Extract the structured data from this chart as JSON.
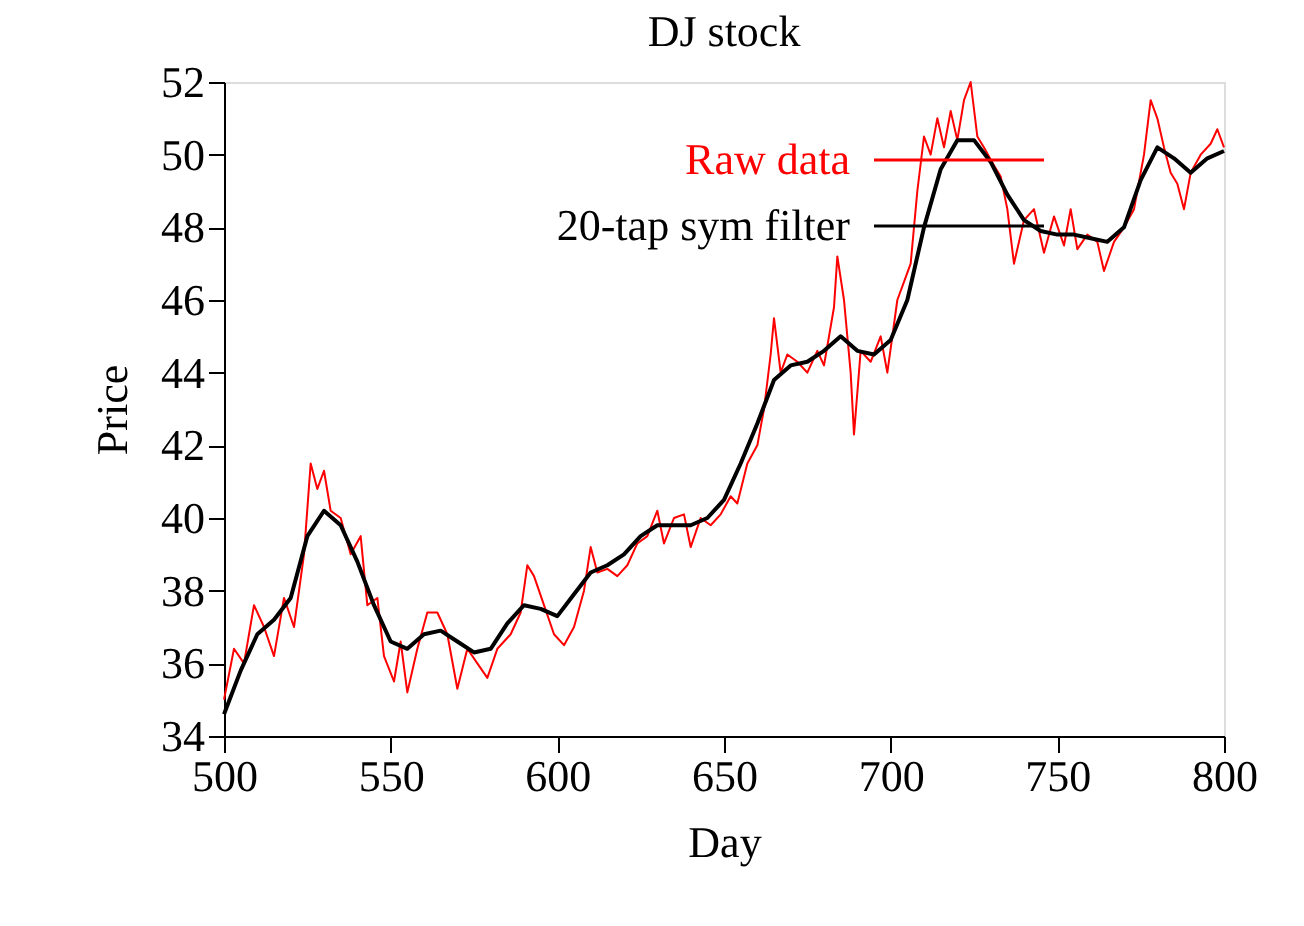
{
  "chart_data": {
    "type": "line",
    "title": "DJ stock",
    "xlabel": "Day",
    "ylabel": "Price",
    "xlim": [
      500,
      800
    ],
    "ylim": [
      34,
      52
    ],
    "xticks": [
      500,
      550,
      600,
      650,
      700,
      750,
      800
    ],
    "yticks": [
      34,
      36,
      38,
      40,
      42,
      44,
      46,
      48,
      50,
      52
    ],
    "grid": false,
    "legend": "top right",
    "marker": "none",
    "line_style": "solid",
    "series": [
      {
        "name": "Raw data",
        "color": "#ff0000",
        "x": [
          500,
          503,
          506,
          509,
          512,
          515,
          518,
          521,
          524,
          526,
          528,
          530,
          532,
          535,
          538,
          541,
          543,
          546,
          548,
          551,
          553,
          555,
          558,
          561,
          564,
          567,
          570,
          573,
          576,
          579,
          582,
          586,
          589,
          591,
          593,
          596,
          599,
          602,
          605,
          608,
          610,
          612,
          615,
          618,
          621,
          624,
          627,
          630,
          632,
          635,
          638,
          640,
          643,
          646,
          649,
          652,
          654,
          657,
          660,
          662,
          664,
          665,
          667,
          669,
          672,
          675,
          678,
          680,
          683,
          684,
          686,
          688,
          689,
          691,
          694,
          697,
          699,
          702,
          704,
          706,
          708,
          710,
          712,
          714,
          716,
          718,
          720,
          722,
          724,
          726,
          728,
          731,
          733,
          735,
          737,
          740,
          743,
          746,
          749,
          752,
          754,
          756,
          759,
          762,
          764,
          767,
          770,
          773,
          776,
          778,
          780,
          782,
          784,
          786,
          788,
          790,
          793,
          796,
          798,
          800
        ],
        "values": [
          35.0,
          36.4,
          36.0,
          37.6,
          37.0,
          36.2,
          37.8,
          37.0,
          39.0,
          41.5,
          40.8,
          41.3,
          40.2,
          40.0,
          39.0,
          39.5,
          37.6,
          37.8,
          36.2,
          35.5,
          36.6,
          35.2,
          36.4,
          37.4,
          37.4,
          36.8,
          35.3,
          36.4,
          36.0,
          35.6,
          36.4,
          36.8,
          37.4,
          38.7,
          38.4,
          37.6,
          36.8,
          36.5,
          37.0,
          38.0,
          39.2,
          38.5,
          38.6,
          38.4,
          38.7,
          39.3,
          39.5,
          40.2,
          39.3,
          40.0,
          40.1,
          39.2,
          40.0,
          39.8,
          40.1,
          40.6,
          40.4,
          41.5,
          42.0,
          43.0,
          44.5,
          45.5,
          44.0,
          44.5,
          44.3,
          44.0,
          44.6,
          44.2,
          45.8,
          47.2,
          46.0,
          44.0,
          42.3,
          44.6,
          44.3,
          45.0,
          44.0,
          46.0,
          46.5,
          47.0,
          49.0,
          50.5,
          50.0,
          51.0,
          50.2,
          51.2,
          50.4,
          51.5,
          52.0,
          50.5,
          50.2,
          49.7,
          49.4,
          48.5,
          47.0,
          48.2,
          48.5,
          47.3,
          48.3,
          47.5,
          48.5,
          47.4,
          47.8,
          47.6,
          46.8,
          47.6,
          48.0,
          48.5,
          50.0,
          51.5,
          51.0,
          50.2,
          49.5,
          49.2,
          48.5,
          49.5,
          50.0,
          50.3,
          50.7,
          50.2
        ]
      },
      {
        "name": "20-tap sym filter",
        "color": "#000000",
        "x": [
          500,
          505,
          510,
          515,
          520,
          525,
          530,
          535,
          540,
          545,
          550,
          555,
          560,
          565,
          570,
          575,
          580,
          585,
          590,
          595,
          600,
          605,
          610,
          615,
          620,
          625,
          630,
          635,
          640,
          645,
          650,
          655,
          660,
          665,
          670,
          675,
          680,
          685,
          690,
          695,
          700,
          705,
          710,
          715,
          720,
          725,
          730,
          735,
          740,
          745,
          750,
          755,
          760,
          765,
          770,
          775,
          780,
          785,
          790,
          795,
          800
        ],
        "values": [
          34.6,
          35.8,
          36.8,
          37.2,
          37.8,
          39.5,
          40.2,
          39.8,
          38.8,
          37.6,
          36.6,
          36.4,
          36.8,
          36.9,
          36.6,
          36.3,
          36.4,
          37.1,
          37.6,
          37.5,
          37.3,
          37.9,
          38.5,
          38.7,
          39.0,
          39.5,
          39.8,
          39.8,
          39.8,
          40.0,
          40.5,
          41.5,
          42.6,
          43.8,
          44.2,
          44.3,
          44.6,
          45.0,
          44.6,
          44.5,
          44.9,
          46.0,
          48.0,
          49.6,
          50.4,
          50.4,
          49.8,
          48.9,
          48.2,
          47.9,
          47.8,
          47.8,
          47.7,
          47.6,
          48.0,
          49.3,
          50.2,
          49.9,
          49.5,
          49.9,
          50.1
        ]
      }
    ]
  }
}
